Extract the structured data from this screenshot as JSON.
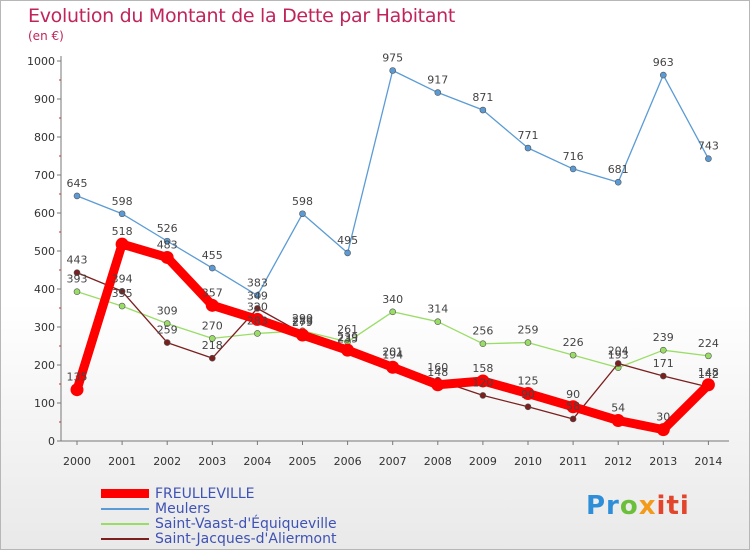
{
  "chart_data": {
    "type": "line",
    "title": "Evolution du Montant de la Dette par Habitant",
    "subtitle": "(en €)",
    "categories": [
      "2000",
      "2001",
      "2002",
      "2003",
      "2004",
      "2005",
      "2006",
      "2007",
      "2008",
      "2009",
      "2010",
      "2011",
      "2012",
      "2013",
      "2014"
    ],
    "ylim": [
      0,
      1000
    ],
    "yticks": [
      0,
      100,
      200,
      300,
      400,
      500,
      600,
      700,
      800,
      900,
      1000
    ],
    "grid": false,
    "legend_position": "bottom-left",
    "series": [
      {
        "name": "FREULLEVILLE",
        "color": "#ff0000",
        "values": [
          135,
          518,
          483,
          357,
          320,
          279,
          239,
          194,
          148,
          158,
          125,
          90,
          54,
          30,
          148
        ]
      },
      {
        "name": "Meulers",
        "color": "#5b9bd5",
        "values": [
          645,
          598,
          526,
          455,
          383,
          598,
          495,
          975,
          917,
          871,
          771,
          716,
          681,
          963,
          743
        ]
      },
      {
        "name": "Saint-Vaast-d'Équiqueville",
        "color": "#99dd66",
        "values": [
          393,
          355,
          309,
          270,
          283,
          290,
          261,
          340,
          314,
          256,
          259,
          226,
          193,
          239,
          224
        ]
      },
      {
        "name": "Saint-Jacques-d'Aliermont",
        "color": "#7b1f1f",
        "values": [
          443,
          394,
          259,
          218,
          349,
          283,
          235,
          201,
          160,
          120,
          90,
          58,
          204,
          171,
          142
        ]
      }
    ]
  },
  "logo": {
    "p1": "Pr",
    "p2": "o",
    "p3": "x",
    "p4": "iti"
  }
}
